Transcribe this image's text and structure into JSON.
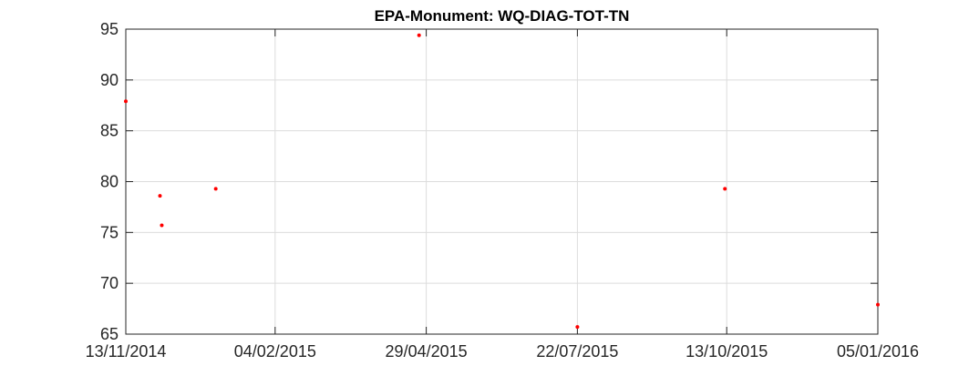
{
  "chart_data": {
    "type": "scatter",
    "title": "EPA-Monument: WQ-DIAG-TOT-TN",
    "xlabel": "",
    "ylabel": "",
    "x_ticks": [
      "13/11/2014",
      "04/02/2015",
      "29/04/2015",
      "22/07/2015",
      "13/10/2015",
      "05/01/2016"
    ],
    "y_ticks": [
      "65",
      "70",
      "75",
      "80",
      "85",
      "90",
      "95"
    ],
    "xlim": [
      "2014-11-13",
      "2016-01-05"
    ],
    "ylim": [
      65,
      95
    ],
    "grid": true,
    "series": [
      {
        "color": "#ff0000",
        "x": [
          "2014-11-13",
          "2014-12-02",
          "2014-12-03",
          "2015-01-02",
          "2015-04-25",
          "2015-07-22",
          "2015-10-12",
          "2016-01-05"
        ],
        "y": [
          87.9,
          78.6,
          75.7,
          79.3,
          94.4,
          65.7,
          79.3,
          67.9
        ]
      }
    ]
  }
}
